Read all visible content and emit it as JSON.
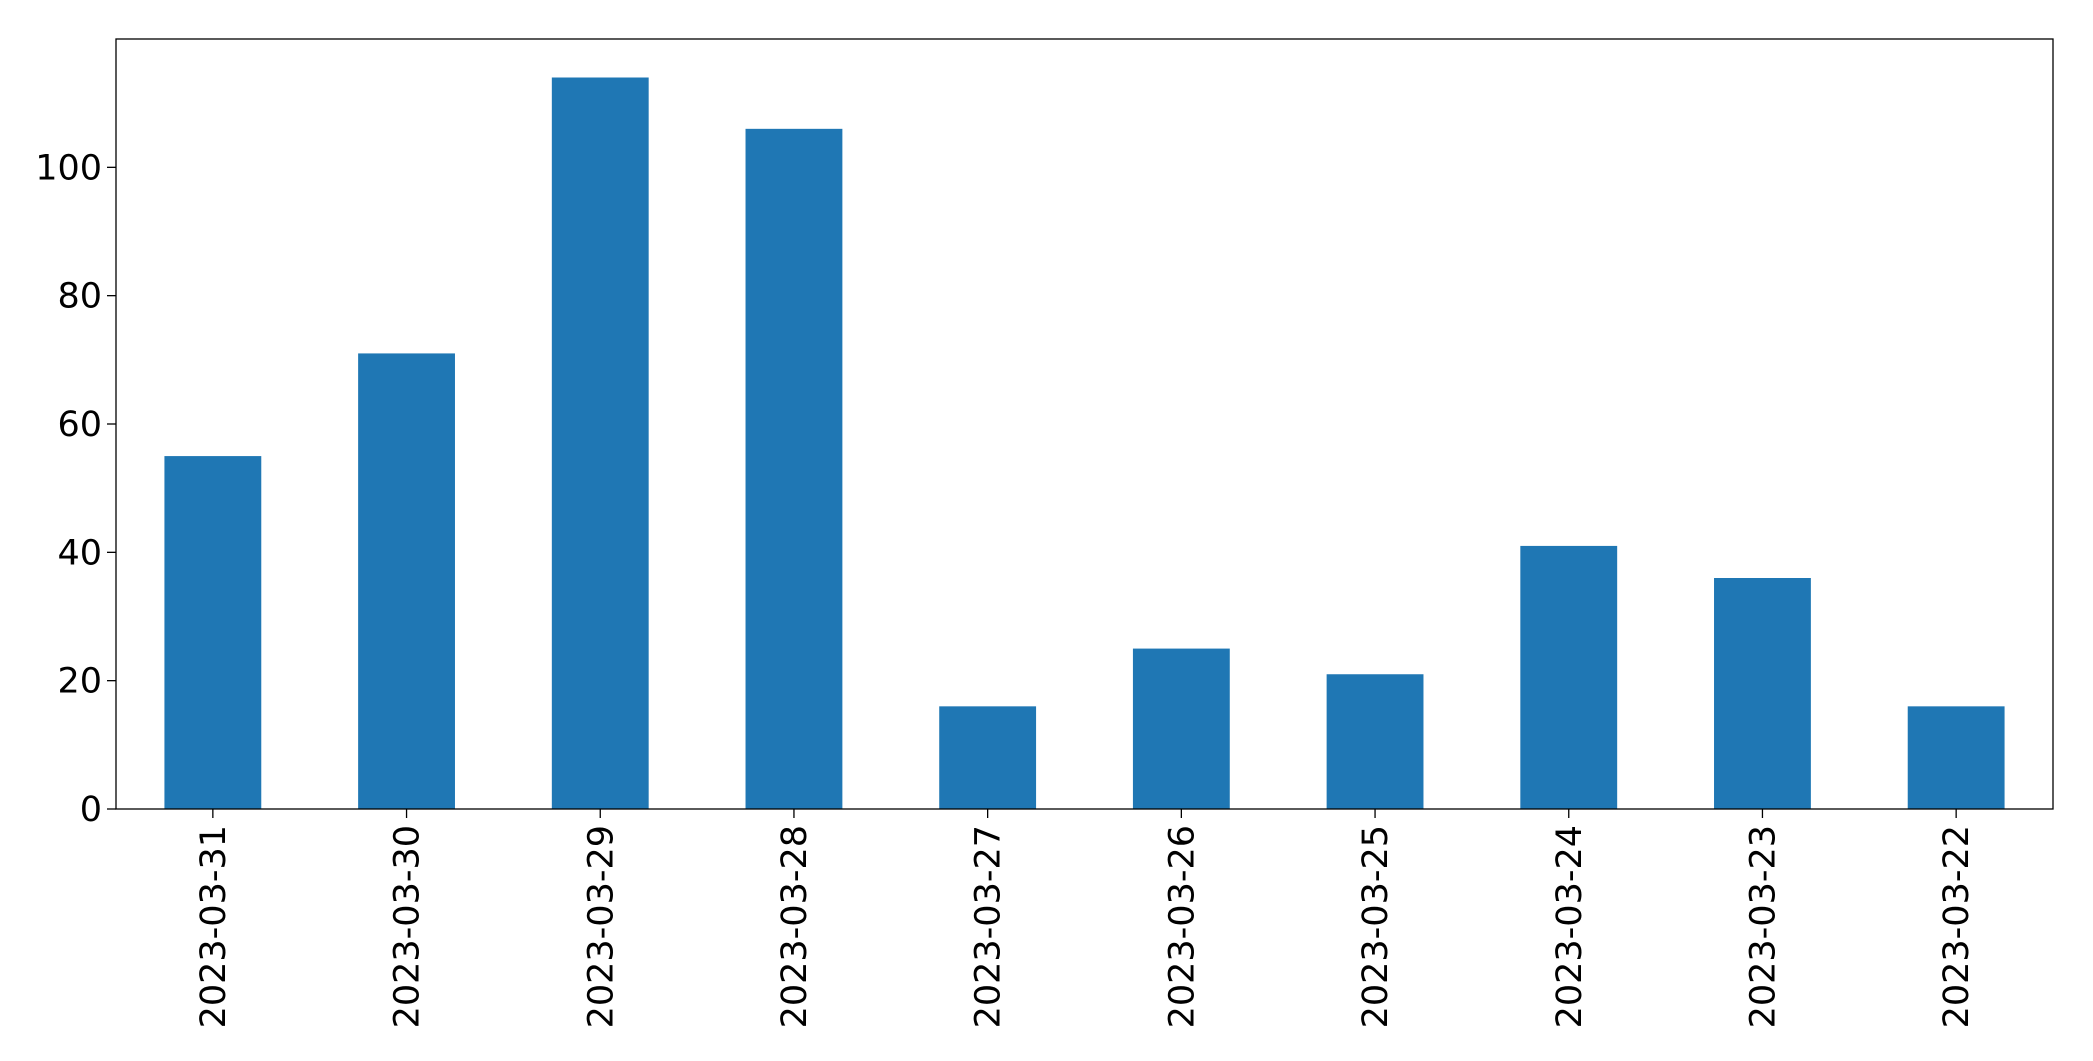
{
  "chart_data": {
    "type": "bar",
    "categories": [
      "2023-03-31",
      "2023-03-30",
      "2023-03-29",
      "2023-03-28",
      "2023-03-27",
      "2023-03-26",
      "2023-03-25",
      "2023-03-24",
      "2023-03-23",
      "2023-03-22"
    ],
    "values": [
      55,
      71,
      114,
      106,
      16,
      25,
      21,
      41,
      36,
      16
    ],
    "color": "#1f77b4",
    "ylim": [
      0,
      120
    ],
    "yticks": [
      0,
      20,
      40,
      60,
      80,
      100
    ],
    "grid": false
  }
}
